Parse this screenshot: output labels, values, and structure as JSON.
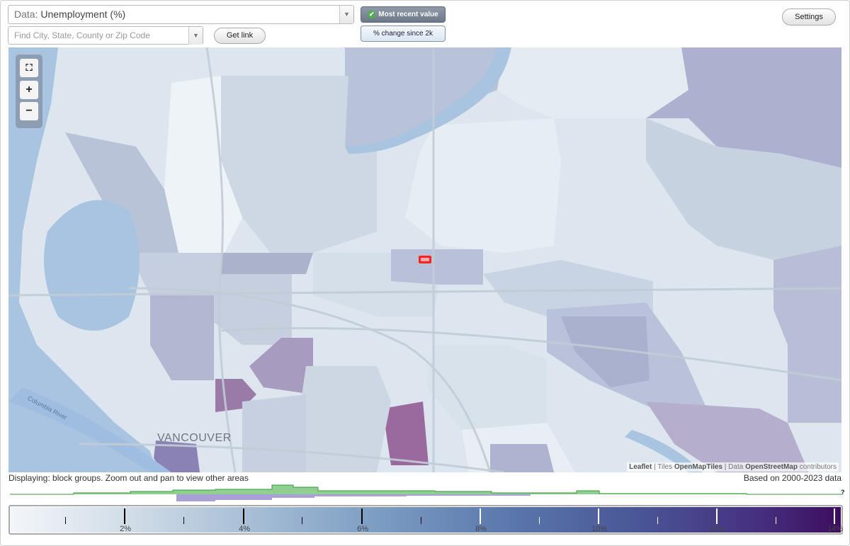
{
  "header": {
    "data_prefix": "Data:",
    "data_value": "Unemployment (%)",
    "search_placeholder": "Find City, State, County or Zip Code",
    "get_link_label": "Get link",
    "settings_label": "Settings",
    "mode_active_label": "Most recent value",
    "mode_inactive_label": "% change since 2k"
  },
  "map": {
    "city_label": "VANCOUVER",
    "river_label": "Columbia River",
    "attribution": {
      "leaflet": "Leaflet",
      "sep1": " | Tiles ",
      "tiles": "OpenMapTiles",
      "sep2": " | Data ",
      "data": "OpenStreetMap",
      "suffix": " contributors"
    },
    "icons": {
      "full_extent": "fullscreen-icon",
      "zoom_in": "plus-icon",
      "zoom_out": "minus-icon"
    }
  },
  "status": {
    "left": "Displaying: block groups. Zoom out and pan to view other areas",
    "right": "Based on 2000-2023 data"
  },
  "legend": {
    "min": 0,
    "max": 14,
    "unit": "%",
    "labels": [
      "2%",
      "4%",
      "6%",
      "8%",
      "10%",
      "12%",
      "14%"
    ],
    "help": "?"
  },
  "colors": {
    "low": "#f3f6f9",
    "mid": "#7a9bc2",
    "high": "#3d0d5e",
    "water": "#a8c4e0",
    "highlight": "#ff2222"
  }
}
